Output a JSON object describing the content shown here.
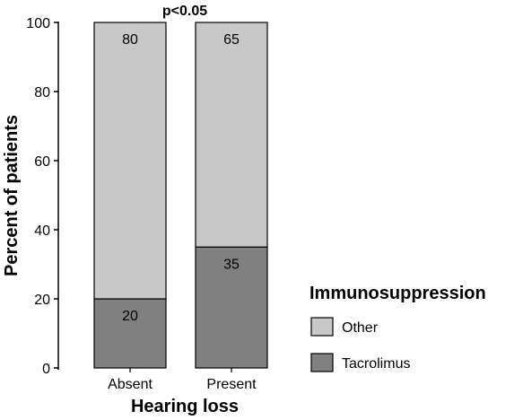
{
  "chart_data": {
    "type": "bar",
    "stacked": true,
    "categories": [
      "Absent",
      "Present"
    ],
    "series": [
      {
        "name": "Tacrolimus",
        "values": [
          20,
          35
        ],
        "color": "#808080"
      },
      {
        "name": "Other",
        "values": [
          80,
          65
        ],
        "color": "#c8c8c8"
      }
    ],
    "xlabel": "Hearing loss",
    "ylabel": "Percent of patients",
    "ylim": [
      0,
      100
    ],
    "yticks": [
      0,
      20,
      40,
      60,
      80,
      100
    ],
    "annotation": "p<0.05",
    "legend": {
      "title": "Immunosuppression",
      "position": "right",
      "order": [
        "Other",
        "Tacrolimus"
      ]
    },
    "grid": false
  }
}
